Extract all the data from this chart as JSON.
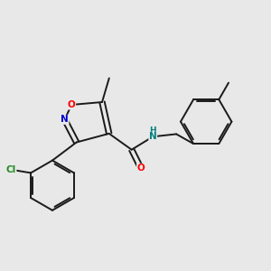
{
  "background_color": "#e8e8e8",
  "bond_color": "#1a1a1a",
  "atom_colors": {
    "O": "#ff0000",
    "N": "#0000cc",
    "Cl": "#228B22",
    "NH_H": "#008080",
    "NH_N": "#008080"
  },
  "figsize": [
    3.0,
    3.0
  ],
  "dpi": 100
}
